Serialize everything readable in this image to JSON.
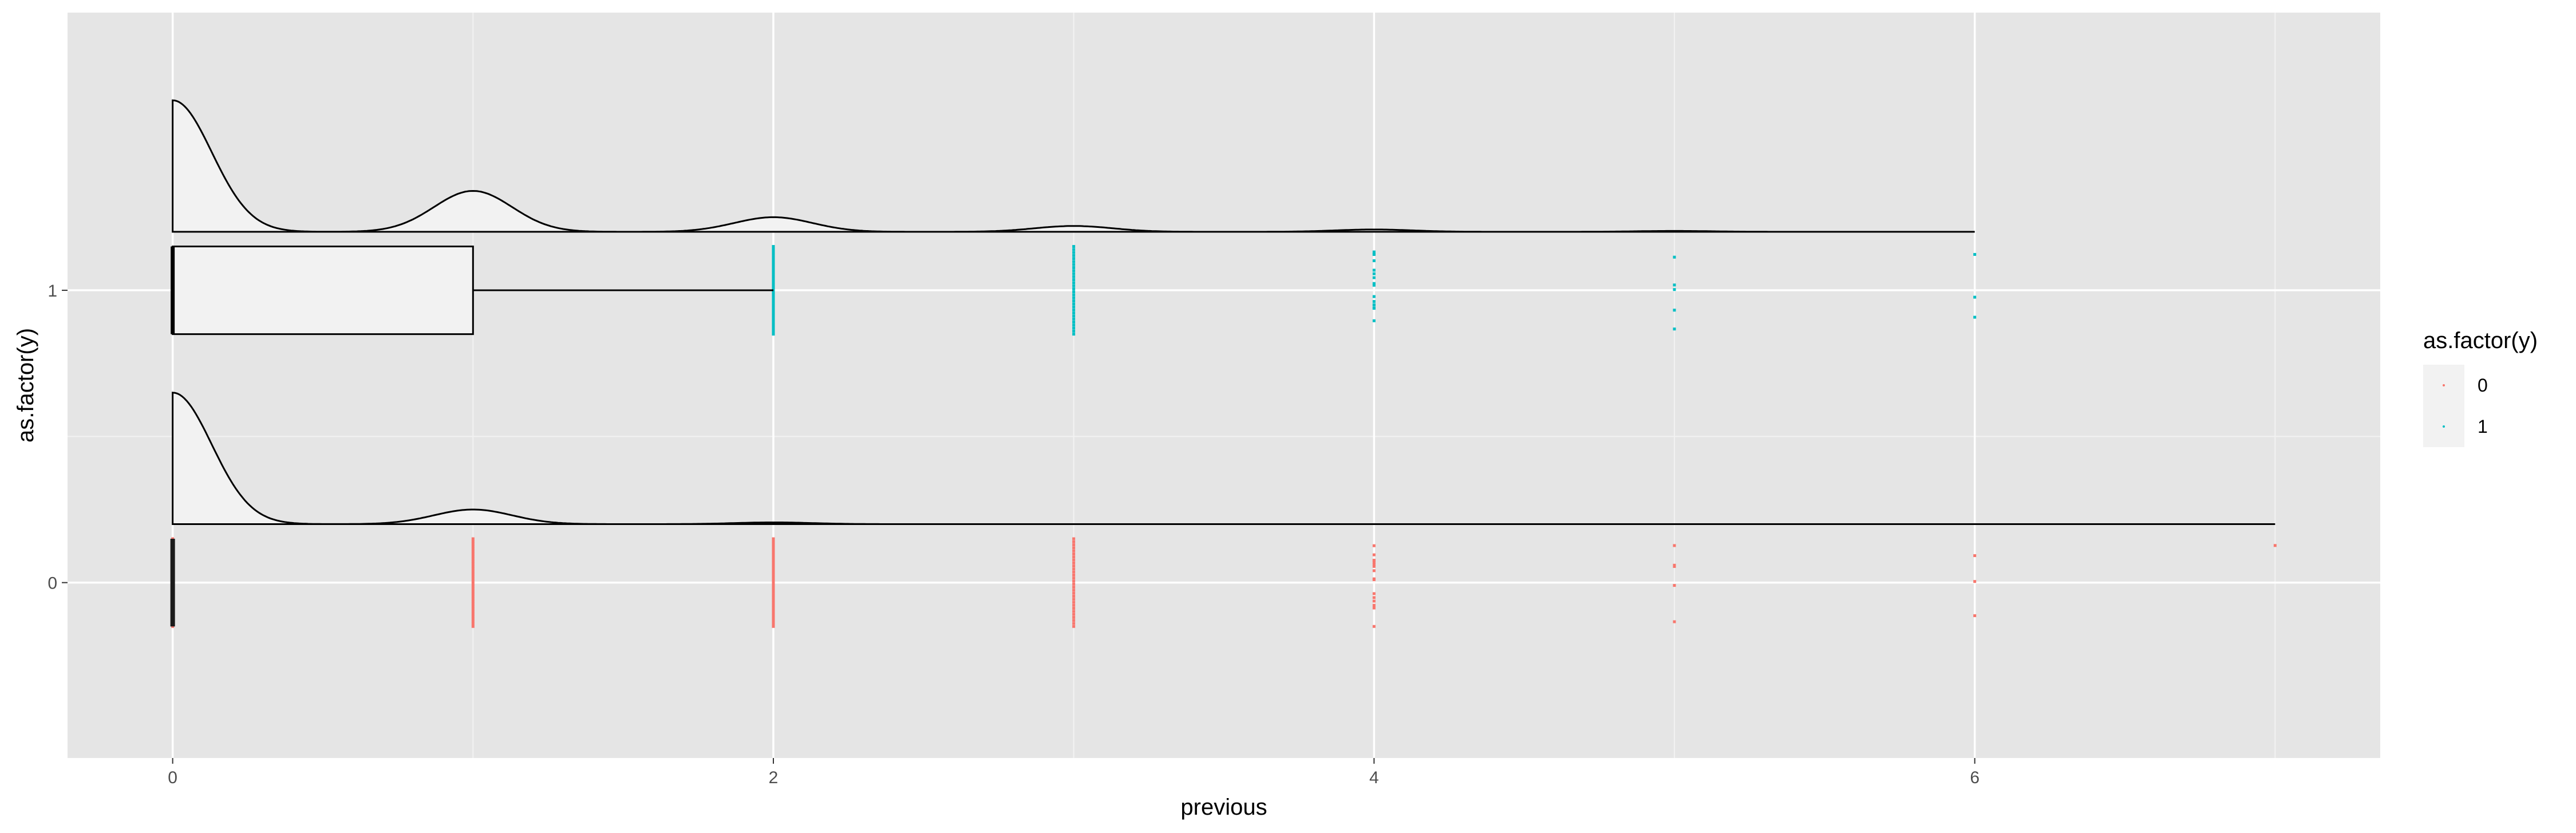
{
  "chart_data": {
    "type": "raincloud",
    "xlabel": "previous",
    "ylabel": "as.factor(y)",
    "xlim": [
      -0.35,
      7.35
    ],
    "ylim": [
      -0.6,
      1.95
    ],
    "x_ticks": [
      0,
      2,
      4,
      6
    ],
    "x_tick_labels": [
      "0",
      "2",
      "4",
      "6"
    ],
    "y_categories": [
      "0",
      "1"
    ],
    "grid": true,
    "legend": {
      "title": "as.factor(y)",
      "position": "right",
      "entries": [
        {
          "label": "0",
          "color": "#F8766D"
        },
        {
          "label": "1",
          "color": "#00BFC4"
        }
      ]
    },
    "series": [
      {
        "name": "0",
        "color": "#F8766D",
        "range": [
          0,
          7
        ],
        "density_peaks": [
          {
            "x": 0,
            "h": 0.45
          },
          {
            "x": 1,
            "h": 0.05
          },
          {
            "x": 2,
            "h": 0.006
          }
        ],
        "points_x": [
          0,
          1,
          2,
          3,
          4,
          5,
          6,
          7
        ]
      },
      {
        "name": "1",
        "color": "#00BFC4",
        "range": [
          0,
          6
        ],
        "boxplot": {
          "min": 0,
          "q1": 0,
          "median": 0,
          "q3": 1,
          "max": 2
        },
        "density_peaks": [
          {
            "x": 0,
            "h": 0.45
          },
          {
            "x": 1,
            "h": 0.14
          },
          {
            "x": 2,
            "h": 0.05
          },
          {
            "x": 3,
            "h": 0.02
          },
          {
            "x": 4,
            "h": 0.008
          },
          {
            "x": 5,
            "h": 0.003
          }
        ],
        "points_x": [
          2,
          3,
          4,
          5,
          6
        ]
      }
    ]
  }
}
